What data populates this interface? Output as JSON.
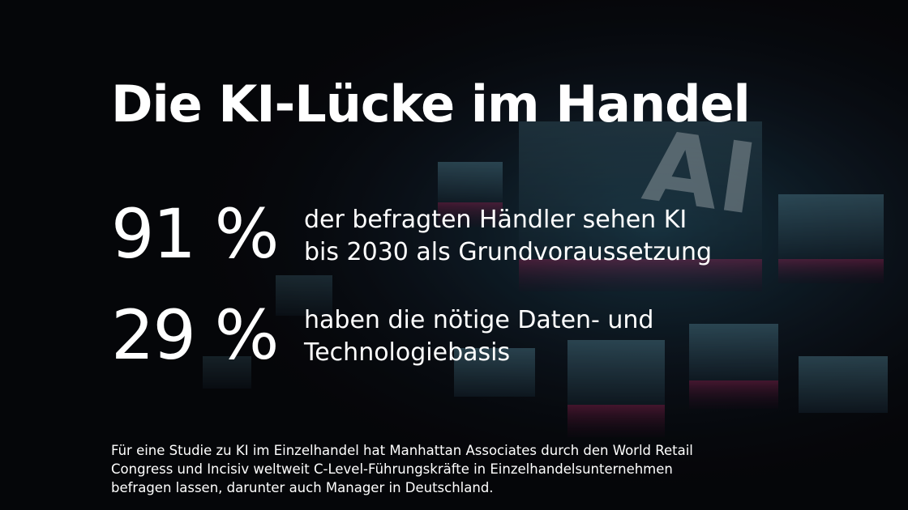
{
  "title": "Die KI-Lücke im Handel",
  "stats": [
    {
      "figure": "91 %",
      "text": [
        "der befragten Händler sehen KI",
        "bis 2030 als Grundvoraussetzung"
      ]
    },
    {
      "figure": "29 %",
      "text": [
        "haben die nötige Daten- und",
        "Technologiebasis"
      ]
    }
  ],
  "footnote": [
    "Für eine Studie zu KI im Einzelhandel hat Manhattan Associates durch den World Retail",
    "Congress und Incisiv weltweit C-Level-Führungskräfte in Einzelhandelsunternehmen",
    "befragen lassen, darunter auch Manager in Deutschland."
  ],
  "background_label": "AI"
}
